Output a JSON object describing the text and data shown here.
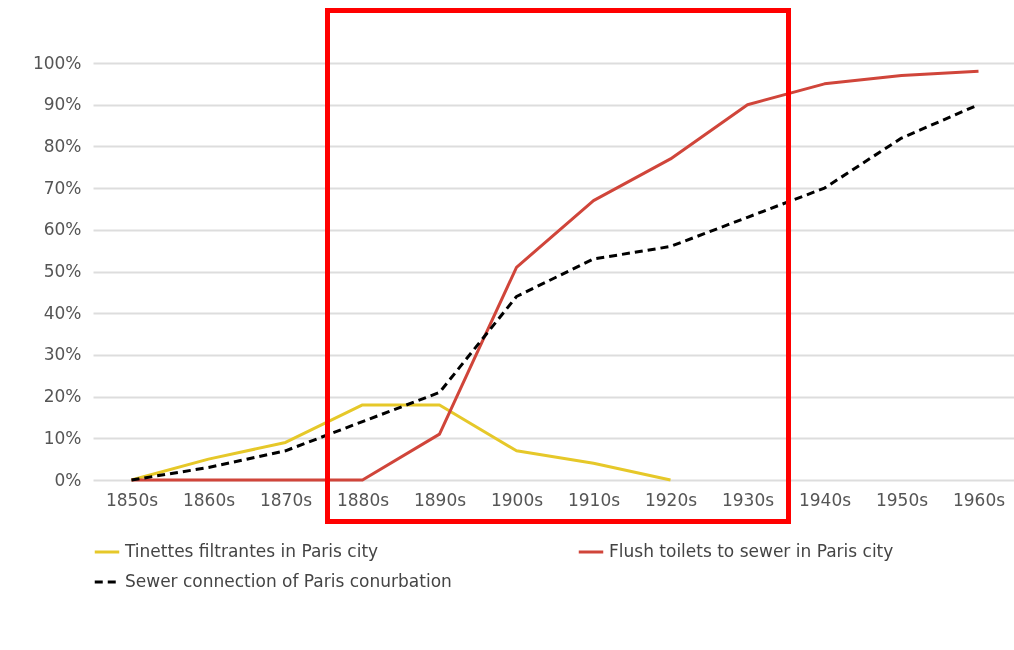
{
  "chart_data": {
    "type": "line",
    "categories": [
      "1850s",
      "1860s",
      "1870s",
      "1880s",
      "1890s",
      "1900s",
      "1910s",
      "1920s",
      "1930s",
      "1940s",
      "1950s",
      "1960s"
    ],
    "series": [
      {
        "name": "Tinettes filtrantes in Paris city",
        "color": "#e6c829",
        "line_style": "solid",
        "values": [
          0,
          5,
          9,
          18,
          18,
          7,
          4,
          0,
          null,
          null,
          null,
          null
        ]
      },
      {
        "name": "Flush toilets to sewer in Paris city",
        "color": "#d0453a",
        "line_style": "solid",
        "values": [
          0,
          0,
          0,
          0,
          11,
          51,
          67,
          77,
          90,
          95,
          97,
          98
        ]
      },
      {
        "name": "Sewer connection of Paris conurbation",
        "color": "#000000",
        "line_style": "dashed",
        "values": [
          0,
          3,
          7,
          14,
          21,
          44,
          53,
          56,
          63,
          70,
          82,
          90
        ]
      }
    ],
    "ylim": [
      0,
      100
    ],
    "yticks": [
      {
        "value": 0,
        "label": "0%"
      },
      {
        "value": 10,
        "label": "10%"
      },
      {
        "value": 20,
        "label": "20%"
      },
      {
        "value": 30,
        "label": "30%"
      },
      {
        "value": 40,
        "label": "40%"
      },
      {
        "value": 50,
        "label": "50%"
      },
      {
        "value": 60,
        "label": "60%"
      },
      {
        "value": 70,
        "label": "70%"
      },
      {
        "value": 80,
        "label": "80%"
      },
      {
        "value": 90,
        "label": "90%"
      },
      {
        "value": 100,
        "label": "100%"
      }
    ],
    "grid": "y",
    "legend": "bottom"
  }
}
